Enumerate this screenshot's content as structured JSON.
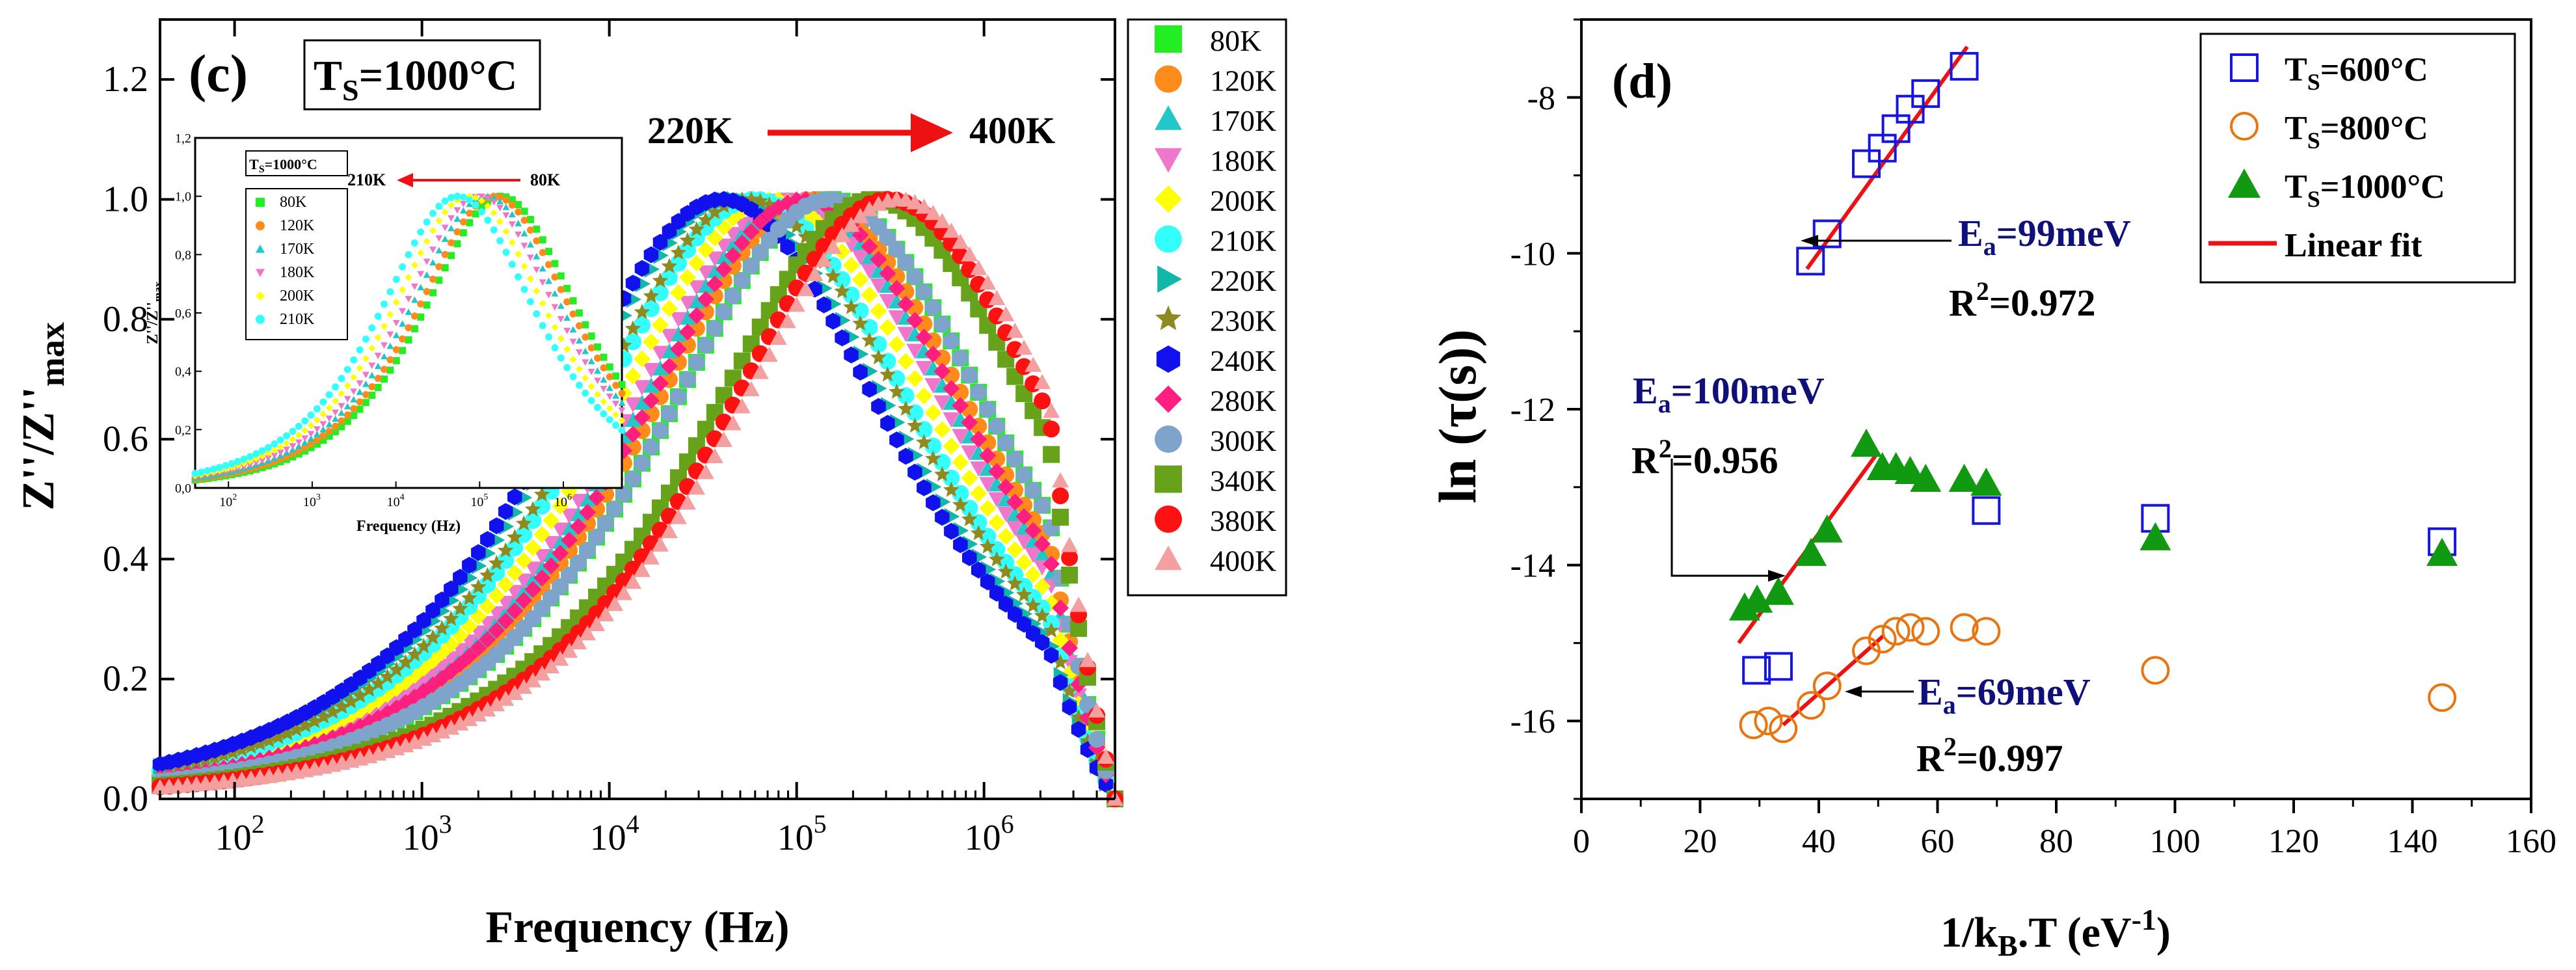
{
  "chart_data": [
    {
      "panel": "c",
      "type": "line",
      "xscale": "log",
      "xlabel": "Frequency (Hz)",
      "ylabel": "Z''/Z''max",
      "ylim": [
        0,
        1.3
      ],
      "yticks": [
        "0.0",
        "0.2",
        "0.4",
        "0.6",
        "0.8",
        "1.0",
        "1.2"
      ],
      "xtick_exponents": [
        "2",
        "3",
        "4",
        "5",
        "6"
      ],
      "xtick_base": "10",
      "x_range_hz": [
        40,
        5000000
      ],
      "sample_box": {
        "prefix": "T",
        "subscript": "S",
        "value": "=1000°C"
      },
      "arrow_from": "220K",
      "arrow_to": "400K",
      "peak_width_decades": 2.2,
      "series": [
        {
          "name": "80K",
          "color": "#22ee22",
          "marker": "square",
          "peak_hz": 150000
        },
        {
          "name": "120K",
          "color": "#ff8c1a",
          "marker": "circle",
          "peak_hz": 120000
        },
        {
          "name": "170K",
          "color": "#22c8c8",
          "marker": "triangle-up",
          "peak_hz": 100000
        },
        {
          "name": "180K",
          "color": "#ee77cc",
          "marker": "triangle-down",
          "peak_hz": 90000
        },
        {
          "name": "200K",
          "color": "#ffff00",
          "marker": "diamond",
          "peak_hz": 75000
        },
        {
          "name": "210K",
          "color": "#33ffff",
          "marker": "circle",
          "peak_hz": 60000
        },
        {
          "name": "220K",
          "color": "#11b8a8",
          "marker": "triangle-right",
          "peak_hz": 45000
        },
        {
          "name": "230K",
          "color": "#8f8a1f",
          "marker": "star",
          "peak_hz": 55000
        },
        {
          "name": "240K",
          "color": "#1111ee",
          "marker": "hexagon",
          "peak_hz": 40000
        },
        {
          "name": "280K",
          "color": "#ff1f7f",
          "marker": "diamond",
          "peak_hz": 110000
        },
        {
          "name": "300K",
          "color": "#7ea4cc",
          "marker": "circle",
          "peak_hz": 150000
        },
        {
          "name": "340K",
          "color": "#66a21a",
          "marker": "square",
          "peak_hz": 260000
        },
        {
          "name": "380K",
          "color": "#ff1111",
          "marker": "circle",
          "peak_hz": 310000
        },
        {
          "name": "400K",
          "color": "#f4a0a0",
          "marker": "triangle-up",
          "peak_hz": 350000
        }
      ]
    },
    {
      "panel": "c-inset",
      "type": "line",
      "xscale": "log",
      "xlabel": "Frequency (Hz)",
      "ylabel": "Z''/Z''max",
      "ylim": [
        0,
        1.2
      ],
      "yticks": [
        "0,0",
        "0,2",
        "0,4",
        "0,6",
        "0,8",
        "1,0",
        "1,2"
      ],
      "xtick_exponents": [
        "2",
        "3",
        "4",
        "5",
        "6"
      ],
      "xtick_base": "10",
      "sample_box": {
        "prefix": "T",
        "subscript": "S",
        "value": "=1000°C"
      },
      "arrow_from": "80K",
      "arrow_to": "210K",
      "series": [
        {
          "name": "80K",
          "color": "#22ee22",
          "marker": "square",
          "peak_hz": 180000
        },
        {
          "name": "120K",
          "color": "#ff8c1a",
          "marker": "circle",
          "peak_hz": 150000
        },
        {
          "name": "170K",
          "color": "#22c8c8",
          "marker": "triangle-up",
          "peak_hz": 120000
        },
        {
          "name": "180K",
          "color": "#ee77cc",
          "marker": "triangle-down",
          "peak_hz": 100000
        },
        {
          "name": "200K",
          "color": "#ffff00",
          "marker": "diamond",
          "peak_hz": 75000
        },
        {
          "name": "210K",
          "color": "#33ffff",
          "marker": "circle",
          "peak_hz": 55000
        }
      ]
    },
    {
      "panel": "d",
      "type": "scatter",
      "xlabel": "1/kB.T (eV-1)",
      "ylabel": "ln (τ(s))",
      "xlim": [
        0,
        160
      ],
      "ylim": [
        -17,
        -7
      ],
      "xticks": [
        0,
        20,
        40,
        60,
        80,
        100,
        120,
        140,
        160
      ],
      "yticks": [
        -8,
        -10,
        -12,
        -14,
        -16
      ],
      "series": [
        {
          "name": "TS=600°C",
          "prefix": "T",
          "subscript": "S",
          "value": "=600°C",
          "color": "#1515dd",
          "marker": "open-square",
          "points": [
            [
              38.6,
              -10.1
            ],
            [
              41.4,
              -9.75
            ],
            [
              48,
              -8.85
            ],
            [
              50.7,
              -8.65
            ],
            [
              53,
              -8.4
            ],
            [
              55.4,
              -8.15
            ],
            [
              58,
              -7.95
            ],
            [
              64.5,
              -7.6
            ],
            [
              68.2,
              -13.3
            ],
            [
              96.7,
              -13.4
            ],
            [
              145,
              -13.7
            ],
            [
              29.5,
              -15.35
            ],
            [
              33.2,
              -15.3
            ]
          ]
        },
        {
          "name": "TS=800°C",
          "prefix": "T",
          "subscript": "S",
          "value": "=800°C",
          "color": "#e87510",
          "marker": "open-circle",
          "points": [
            [
              29,
              -16.05
            ],
            [
              31.5,
              -16.0
            ],
            [
              34,
              -16.1
            ],
            [
              38.7,
              -15.8
            ],
            [
              41.4,
              -15.55
            ],
            [
              48,
              -15.1
            ],
            [
              50.7,
              -14.95
            ],
            [
              53,
              -14.85
            ],
            [
              55.4,
              -14.8
            ],
            [
              58,
              -14.85
            ],
            [
              64.5,
              -14.8
            ],
            [
              68.2,
              -14.85
            ],
            [
              96.7,
              -15.35
            ],
            [
              145,
              -15.7
            ]
          ]
        },
        {
          "name": "TS=1000°C",
          "prefix": "T",
          "subscript": "S",
          "value": "=1000°C",
          "color": "#119911",
          "marker": "filled-triangle",
          "points": [
            [
              27.5,
              -14.55
            ],
            [
              29.6,
              -14.45
            ],
            [
              33.2,
              -14.35
            ],
            [
              38.7,
              -13.85
            ],
            [
              41.4,
              -13.55
            ],
            [
              48,
              -12.45
            ],
            [
              50.7,
              -12.75
            ],
            [
              53,
              -12.75
            ],
            [
              55.4,
              -12.8
            ],
            [
              58,
              -12.9
            ],
            [
              64.5,
              -12.9
            ],
            [
              68.2,
              -12.95
            ],
            [
              96.7,
              -13.65
            ],
            [
              145,
              -13.85
            ]
          ]
        }
      ],
      "fits": [
        {
          "name": "Linear fit",
          "color": "#ee1111",
          "x": [
            38,
            65
          ],
          "y": [
            -10.2,
            -7.35
          ]
        },
        {
          "name": "Linear fit",
          "color": "#ee1111",
          "x": [
            26.5,
            50
          ],
          "y": [
            -15.0,
            -12.55
          ]
        },
        {
          "name": "Linear fit",
          "color": "#ee1111",
          "x": [
            34,
            51
          ],
          "y": [
            -16.05,
            -14.9
          ]
        }
      ],
      "annotations": [
        {
          "ea_value": "=99meV",
          "r2_value": "=0.972"
        },
        {
          "ea_value": "=100meV",
          "r2_value": "=0.956"
        },
        {
          "ea_value": "=69meV",
          "r2_value": "=0.997"
        }
      ],
      "legend_fit_label": "Linear fit"
    }
  ],
  "labels": {
    "panel_c": "(c)",
    "panel_d": "(d)",
    "z_main": "Z''/Z''",
    "z_sub": "max",
    "ea_letter": "E",
    "ea_sub": "a",
    "r2_letter": "R",
    "r2_sup": "2",
    "ln_tau": "ln (τ(s))",
    "kbt_prefix": "1/k",
    "kbt_sub": "B",
    "kbt_suffix": ".T (eV",
    "kbt_sup": "-1",
    "close_paren": ")"
  }
}
